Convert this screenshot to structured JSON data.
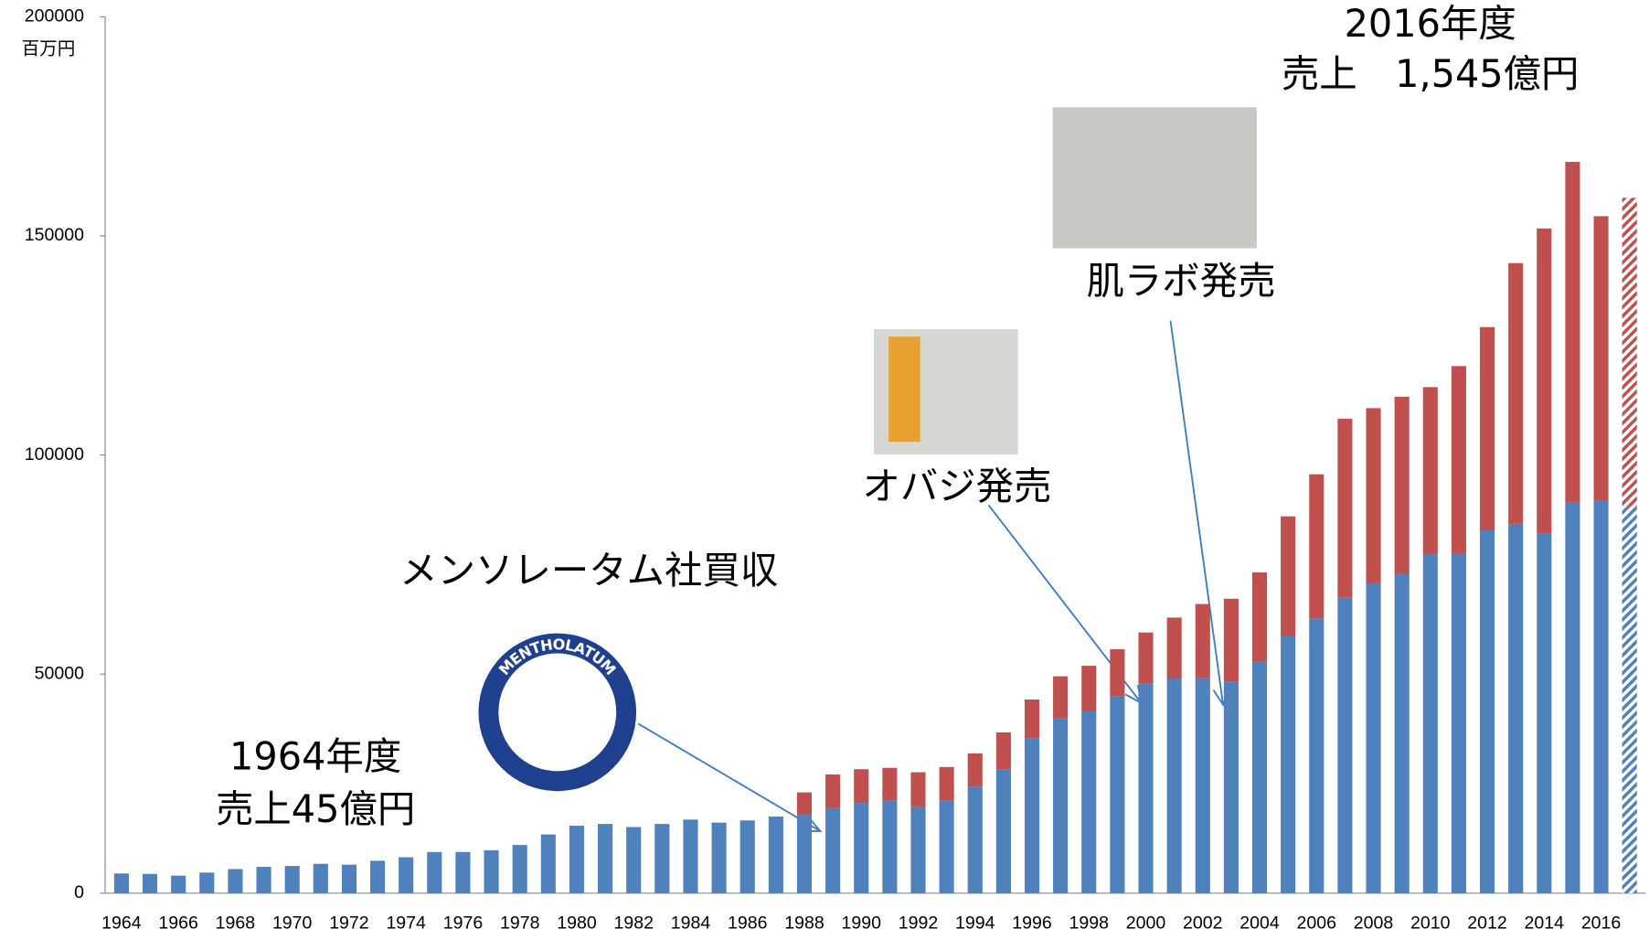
{
  "chart_data": {
    "type": "stacked_bar",
    "y_unit": "百万円",
    "categories": [
      "1964",
      null,
      "1966",
      null,
      "1968",
      null,
      "1970",
      null,
      "1972",
      null,
      "1974",
      null,
      "1976",
      null,
      "1978",
      null,
      "1980",
      null,
      "1982",
      null,
      "1984",
      null,
      "1986",
      null,
      "1988",
      null,
      "1990",
      null,
      "1992",
      null,
      "1994",
      null,
      "1996",
      null,
      "1998",
      null,
      "2000",
      null,
      "2002",
      null,
      "2004",
      null,
      "2006",
      null,
      "2008",
      null,
      "2010",
      null,
      "2012",
      null,
      "2014",
      null,
      "2016",
      null
    ],
    "series": [
      {
        "color": "#4f81bd",
        "values": [
          4500,
          4400,
          4000,
          4700,
          5500,
          6000,
          6200,
          6700,
          6500,
          7400,
          8200,
          9400,
          9400,
          9800,
          11000,
          13400,
          15400,
          15800,
          15100,
          15800,
          16800,
          16100,
          16600,
          17500,
          18000,
          19400,
          20600,
          21100,
          19700,
          21100,
          24300,
          28300,
          35300,
          39900,
          41500,
          44900,
          47800,
          49000,
          49200,
          48300,
          52800,
          58600,
          62700,
          67500,
          70800,
          73000,
          77300,
          77600,
          82800,
          84300,
          82100,
          89300,
          89600,
          88100
        ]
      },
      {
        "color": "#c0504d",
        "values": [
          null,
          null,
          null,
          null,
          null,
          null,
          null,
          null,
          null,
          null,
          null,
          null,
          null,
          null,
          null,
          null,
          null,
          null,
          null,
          null,
          null,
          null,
          null,
          null,
          5000,
          7700,
          7700,
          7500,
          7900,
          7700,
          7600,
          8400,
          8900,
          9600,
          10400,
          10800,
          11700,
          13900,
          16800,
          18900,
          20400,
          27400,
          32900,
          40800,
          39900,
          40300,
          38200,
          42700,
          46400,
          59500,
          69600,
          77600,
          64900,
          70600
        ]
      }
    ],
    "last_bar_style": "hatched",
    "ylim": [
      0,
      200000
    ],
    "yticks": [
      0,
      50000,
      100000,
      150000,
      200000
    ],
    "annotations": [
      "2016年度",
      "売上　1,545億円",
      "肌ラボ発売",
      "オバジ発売",
      "メンソレータム社買収",
      "1964年度",
      "売上45億円"
    ],
    "logo_text": "MENTHOLATUM"
  }
}
